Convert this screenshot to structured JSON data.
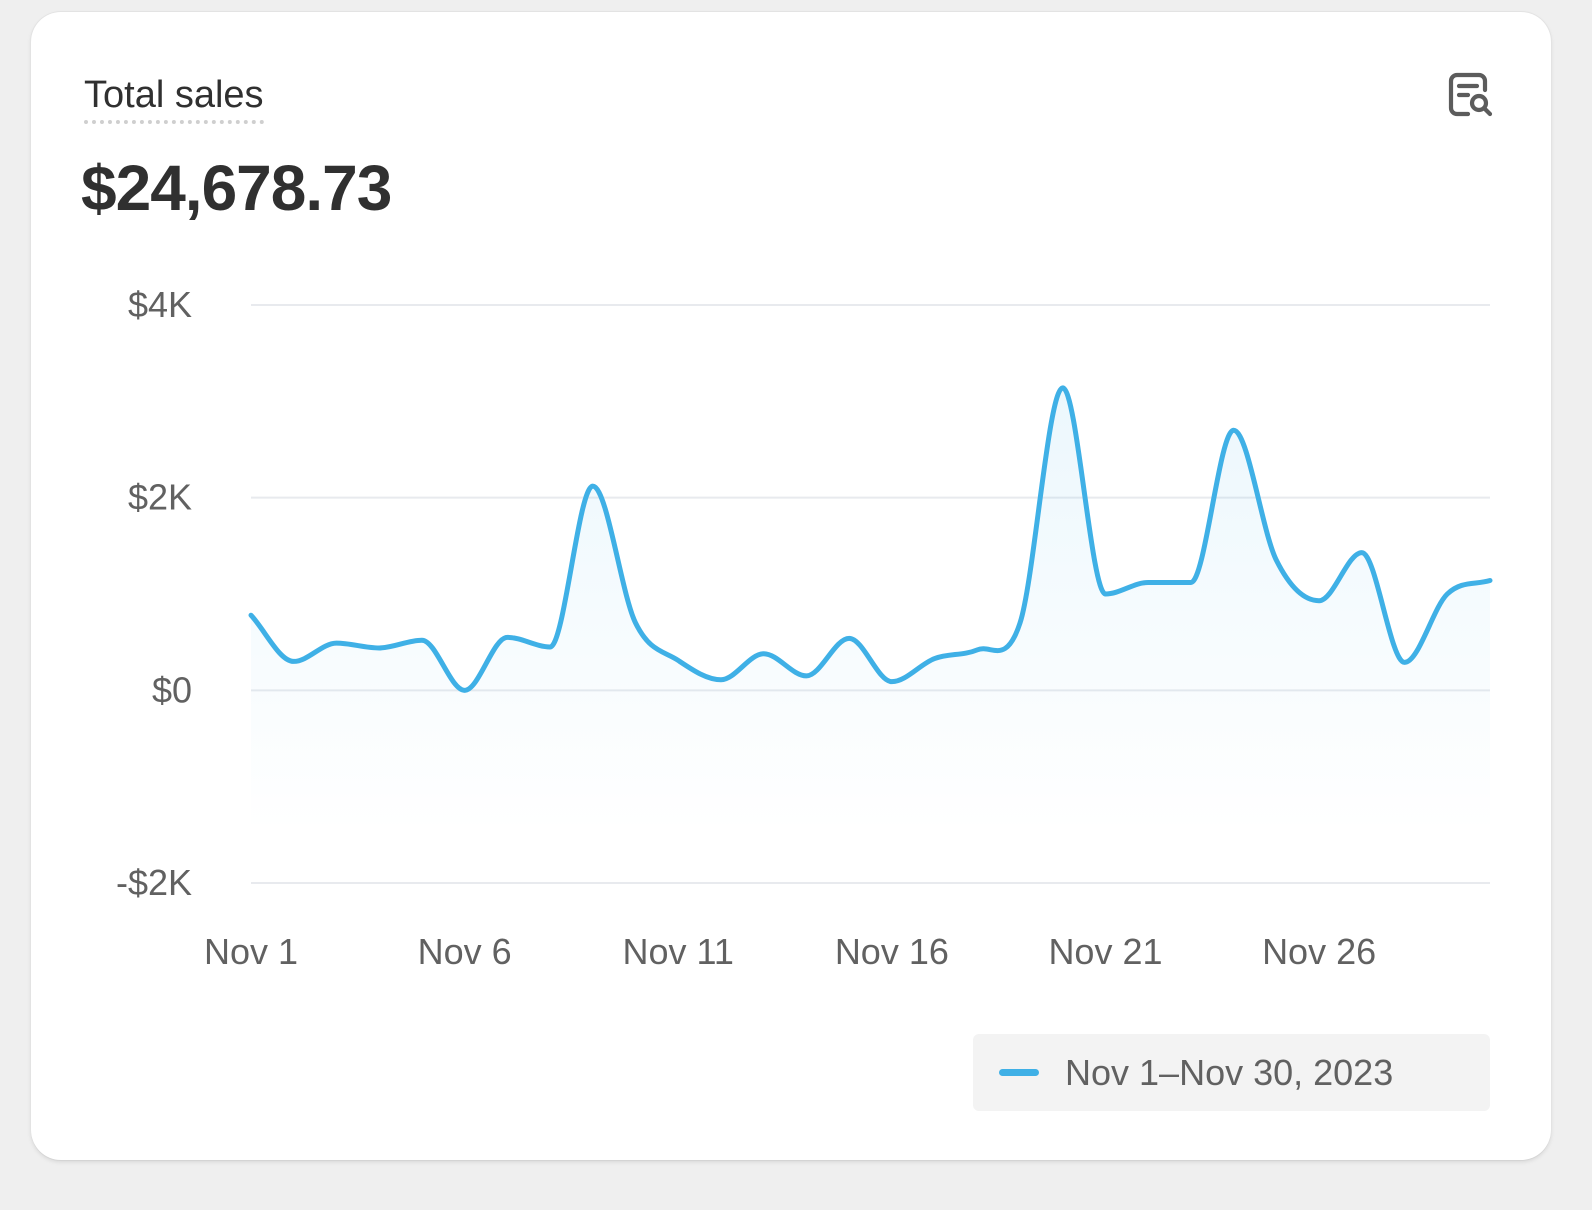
{
  "card": {
    "title": "Total sales",
    "total": "$24,678.73"
  },
  "icons": {
    "explore": "explore-data-icon"
  },
  "colors": {
    "series": "#3fb0e6",
    "grid": "#e8eaee",
    "text_primary": "#303030",
    "text_secondary": "#616161"
  },
  "chart_data": {
    "type": "area",
    "title": "Total sales",
    "x": [
      "Nov 1",
      "Nov 2",
      "Nov 3",
      "Nov 4",
      "Nov 5",
      "Nov 6",
      "Nov 7",
      "Nov 8",
      "Nov 9",
      "Nov 10",
      "Nov 11",
      "Nov 12",
      "Nov 13",
      "Nov 14",
      "Nov 15",
      "Nov 16",
      "Nov 17",
      "Nov 18",
      "Nov 19",
      "Nov 20",
      "Nov 21",
      "Nov 22",
      "Nov 23",
      "Nov 24",
      "Nov 25",
      "Nov 26",
      "Nov 27",
      "Nov 28",
      "Nov 29",
      "Nov 30"
    ],
    "series": [
      {
        "name": "Nov 1–Nov 30, 2023",
        "values": [
          780,
          300,
          490,
          440,
          520,
          0,
          550,
          450,
          2120,
          700,
          310,
          110,
          380,
          150,
          540,
          90,
          330,
          420,
          700,
          3140,
          1000,
          1120,
          1120,
          2700,
          1350,
          930,
          1430,
          290,
          1000,
          1140
        ]
      }
    ],
    "xtick_labels": [
      "Nov 1",
      "Nov 6",
      "Nov 11",
      "Nov 16",
      "Nov 21",
      "Nov 26"
    ],
    "xtick_indices": [
      0,
      5,
      10,
      15,
      20,
      25
    ],
    "yticks": [
      4000,
      2000,
      0,
      -2000
    ],
    "ytick_labels": [
      "$4K",
      "$2K",
      "$0",
      "-$2K"
    ],
    "ylim": [
      -2000,
      4000
    ],
    "grid": true,
    "legend_position": "bottom-right"
  }
}
